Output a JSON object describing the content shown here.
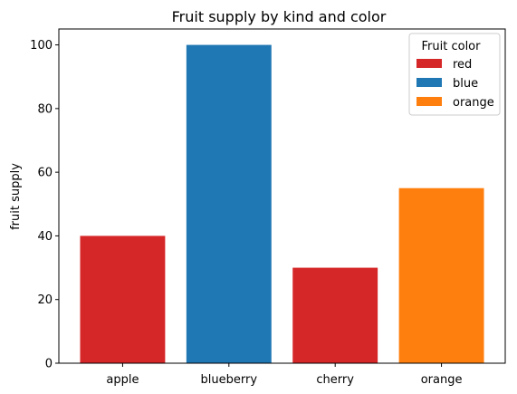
{
  "chart_data": {
    "type": "bar",
    "title": "Fruit supply by kind and color",
    "xlabel": "",
    "ylabel": "fruit supply",
    "categories": [
      "apple",
      "blueberry",
      "cherry",
      "orange"
    ],
    "values": [
      40,
      100,
      30,
      55
    ],
    "bar_colors": [
      "#d62728",
      "#1f77b4",
      "#d62728",
      "#ff7f0e"
    ],
    "ylim": [
      0,
      105
    ],
    "yticks": [
      0,
      20,
      40,
      60,
      80,
      100
    ],
    "grid": false,
    "legend": {
      "title": "Fruit color",
      "placement": "top-right",
      "entries": [
        {
          "label": "red",
          "color": "#d62728"
        },
        {
          "label": "blue",
          "color": "#1f77b4"
        },
        {
          "label": "orange",
          "color": "#ff7f0e"
        }
      ]
    }
  }
}
